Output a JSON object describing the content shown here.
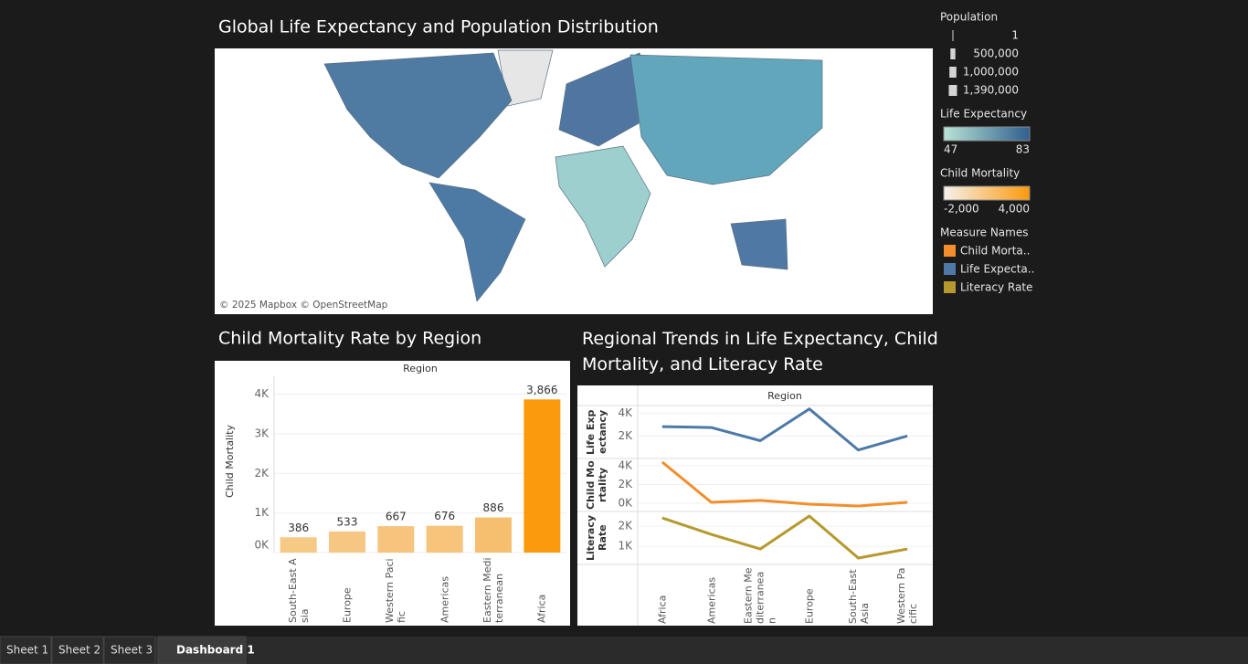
{
  "chart_data": [
    {
      "type": "map",
      "title": "Global Life Expectancy and Population Distribution",
      "attribution": "© 2025 Mapbox © OpenStreetMap"
    },
    {
      "type": "bar",
      "title": "Child Mortality Rate by Region",
      "x_label": "Region",
      "y_label": "Child Mortality",
      "categories": [
        "South-East Asia",
        "Europe",
        "Western Pacific",
        "Americas",
        "Eastern Mediterranean",
        "Africa"
      ],
      "values": [
        386,
        533,
        667,
        676,
        886,
        3866
      ],
      "value_labels": [
        "386",
        "533",
        "667",
        "676",
        "886",
        "3,866"
      ],
      "colors": [
        "#f6c985",
        "#f6c783",
        "#f6c47c",
        "#f6c47b",
        "#f6bf6f",
        "#fb9a0c"
      ],
      "ylim": [
        0,
        4450
      ],
      "yticks": [
        {
          "value": 0,
          "label": "0K"
        },
        {
          "value": 1000,
          "label": "1K"
        },
        {
          "value": 2000,
          "label": "2K"
        },
        {
          "value": 3000,
          "label": "3K"
        },
        {
          "value": 4000,
          "label": "4K"
        }
      ],
      "grid": true
    },
    {
      "type": "line",
      "title": "Regional Trends in Life Expectancy, Child Mortality, and Literacy Rate",
      "x_label": "Region",
      "categories": [
        "Africa",
        "Americas",
        "Eastern Mediterranean",
        "Europe",
        "South-East Asia",
        "Western Pacific"
      ],
      "series": [
        {
          "name": "Life Expectancy",
          "color": "#4e79a7",
          "values": [
            2830,
            2750,
            1580,
            4400,
            750,
            2000
          ],
          "ylim": [
            0,
            4700
          ],
          "yticks": [
            {
              "value": 2000,
              "label": "2K"
            },
            {
              "value": 4000,
              "label": "4K"
            }
          ]
        },
        {
          "name": "Child Mortality",
          "color": "#f28e2b",
          "values": [
            4400,
            100,
            300,
            -100,
            -300,
            100
          ],
          "ylim": [
            -880,
            4780
          ],
          "yticks": [
            {
              "value": 0,
              "label": "0K"
            },
            {
              "value": 2000,
              "label": "2K"
            },
            {
              "value": 4000,
              "label": "4K"
            }
          ]
        },
        {
          "name": "Literacy Rate",
          "color": "#b6992d",
          "values": [
            2410,
            1590,
            860,
            2500,
            410,
            860
          ],
          "ylim": [
            90,
            2730
          ],
          "yticks": [
            {
              "value": 1000,
              "label": "1K"
            },
            {
              "value": 2000,
              "label": "2K"
            }
          ]
        }
      ],
      "grid": true
    }
  ],
  "legends": {
    "population": {
      "title": "Population",
      "items": [
        1,
        {
          "value": 500000,
          "label": "500,000"
        },
        {
          "value": 1000000,
          "label": "1,000,000"
        },
        {
          "value": 1390000,
          "label": "1,390,000"
        }
      ]
    },
    "life_expectancy": {
      "title": "Life Expectancy",
      "range": [
        47,
        83
      ],
      "colors": [
        "#b9e3d6",
        "#2f5f8e"
      ]
    },
    "child_mortality": {
      "title": "Child Mortality",
      "range": [
        {
          "value": -2000,
          "label": "-2,000"
        },
        {
          "value": 4000,
          "label": "4,000"
        }
      ],
      "colors": [
        "#f5f1ec",
        "#fb9a0c"
      ]
    },
    "measure_names": {
      "title": "Measure Names",
      "items": [
        {
          "label": "Child Morta..",
          "color": "#f28e2b"
        },
        {
          "label": "Life Expecta..",
          "color": "#4e79a7"
        },
        {
          "label": "Literacy Rate",
          "color": "#b6992d"
        }
      ]
    }
  },
  "tabs": [
    "Sheet 1",
    "Sheet 2",
    "Sheet 3",
    "Dashboard 1"
  ]
}
